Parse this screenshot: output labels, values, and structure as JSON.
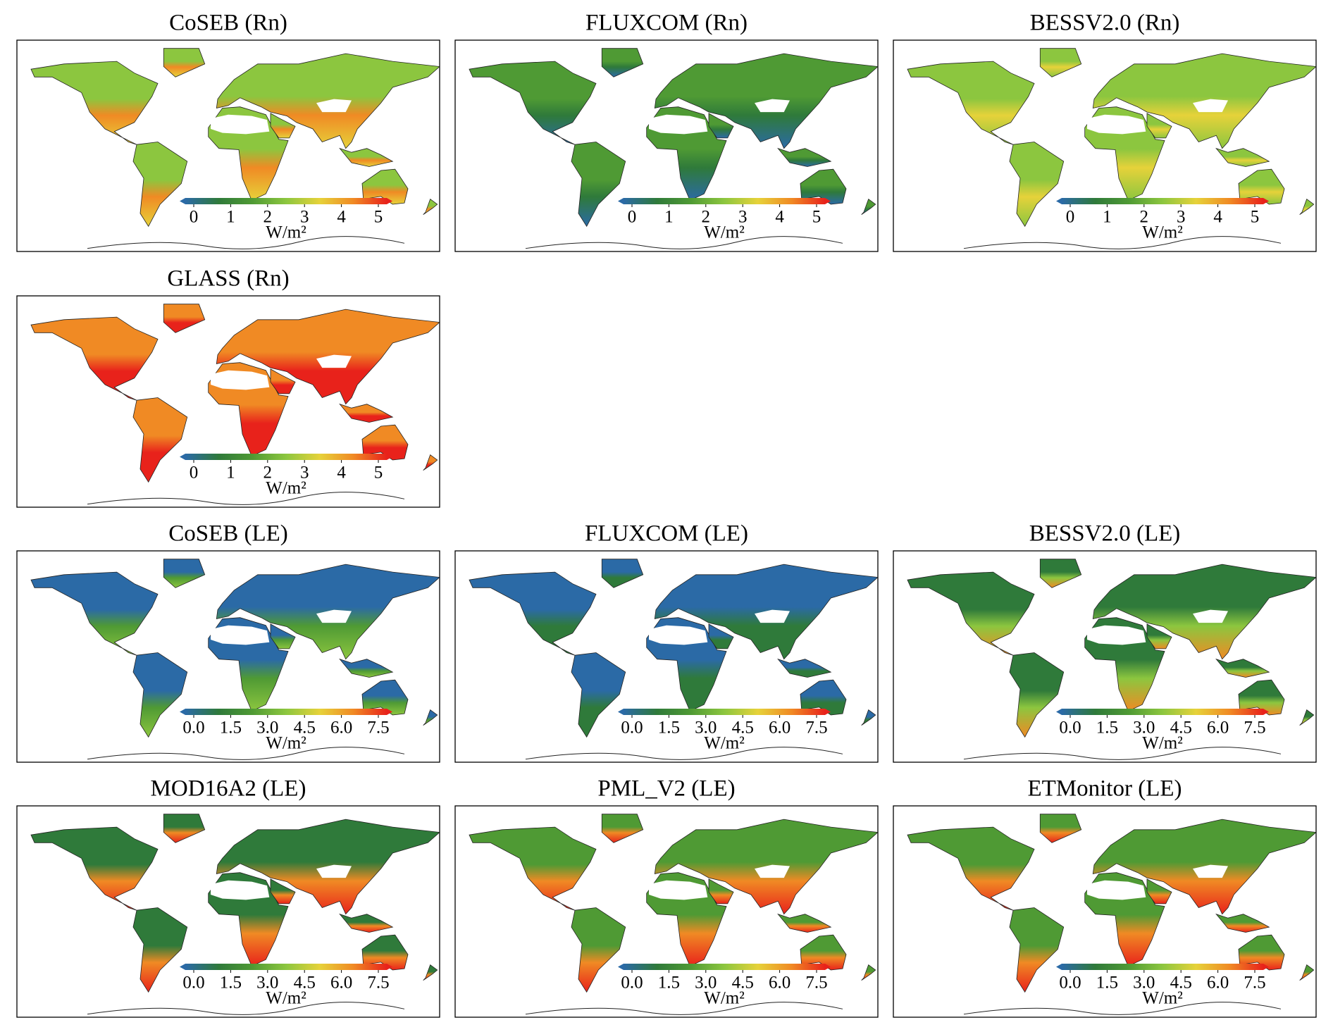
{
  "colormap": [
    "#2b6aa6",
    "#2f7a3a",
    "#4f9a34",
    "#8cc63f",
    "#e6d23a",
    "#f08a24",
    "#e8221b"
  ],
  "panels": [
    {
      "title": "CoSEB (Rn)",
      "colorbar": {
        "lim": [
          0,
          5
        ],
        "ticks": [
          0,
          1,
          2,
          3,
          4,
          5
        ],
        "unit": "W/m²"
      }
    },
    {
      "title": "FLUXCOM (Rn)",
      "colorbar": {
        "lim": [
          0,
          5
        ],
        "ticks": [
          0,
          1,
          2,
          3,
          4,
          5
        ],
        "unit": "W/m²"
      }
    },
    {
      "title": "BESSV2.0 (Rn)",
      "colorbar": {
        "lim": [
          0,
          5
        ],
        "ticks": [
          0,
          1,
          2,
          3,
          4,
          5
        ],
        "unit": "W/m²"
      }
    },
    {
      "title": "GLASS (Rn)",
      "colorbar": {
        "lim": [
          0,
          5
        ],
        "ticks": [
          0,
          1,
          2,
          3,
          4,
          5
        ],
        "unit": "W/m²"
      }
    },
    {
      "title": "CoSEB (LE)",
      "colorbar": {
        "lim": [
          0,
          7.5
        ],
        "ticks": [
          {
            "value": 0,
            "label": "0.0"
          },
          {
            "value": 1.5,
            "label": "1.5"
          },
          {
            "value": 3,
            "label": "3.0"
          },
          {
            "value": 4.5,
            "label": "4.5"
          },
          {
            "value": 6,
            "label": "6.0"
          },
          {
            "value": 7.5,
            "label": "7.5"
          }
        ],
        "unit": "W/m²"
      }
    },
    {
      "title": "FLUXCOM (LE)",
      "colorbar": {
        "lim": [
          0,
          7.5
        ],
        "ticks": [
          {
            "value": 0,
            "label": "0.0"
          },
          {
            "value": 1.5,
            "label": "1.5"
          },
          {
            "value": 3,
            "label": "3.0"
          },
          {
            "value": 4.5,
            "label": "4.5"
          },
          {
            "value": 6,
            "label": "6.0"
          },
          {
            "value": 7.5,
            "label": "7.5"
          }
        ],
        "unit": "W/m²"
      }
    },
    {
      "title": "BESSV2.0 (LE)",
      "colorbar": {
        "lim": [
          0,
          7.5
        ],
        "ticks": [
          {
            "value": 0,
            "label": "0.0"
          },
          {
            "value": 1.5,
            "label": "1.5"
          },
          {
            "value": 3,
            "label": "3.0"
          },
          {
            "value": 4.5,
            "label": "4.5"
          },
          {
            "value": 6,
            "label": "6.0"
          },
          {
            "value": 7.5,
            "label": "7.5"
          }
        ],
        "unit": "W/m²"
      }
    },
    {
      "title": "MOD16A2 (LE)",
      "colorbar": {
        "lim": [
          0,
          7.5
        ],
        "ticks": [
          {
            "value": 0,
            "label": "0.0"
          },
          {
            "value": 1.5,
            "label": "1.5"
          },
          {
            "value": 3,
            "label": "3.0"
          },
          {
            "value": 4.5,
            "label": "4.5"
          },
          {
            "value": 6,
            "label": "6.0"
          },
          {
            "value": 7.5,
            "label": "7.5"
          }
        ],
        "unit": "W/m²"
      }
    },
    {
      "title": "PML_V2 (LE)",
      "colorbar": {
        "lim": [
          0,
          7.5
        ],
        "ticks": [
          {
            "value": 0,
            "label": "0.0"
          },
          {
            "value": 1.5,
            "label": "1.5"
          },
          {
            "value": 3,
            "label": "3.0"
          },
          {
            "value": 4.5,
            "label": "4.5"
          },
          {
            "value": 6,
            "label": "6.0"
          },
          {
            "value": 7.5,
            "label": "7.5"
          }
        ],
        "unit": "W/m²"
      }
    },
    {
      "title": "ETMonitor (LE)",
      "colorbar": {
        "lim": [
          0,
          7.5
        ],
        "ticks": [
          {
            "value": 0,
            "label": "0.0"
          },
          {
            "value": 1.5,
            "label": "1.5"
          },
          {
            "value": 3,
            "label": "3.0"
          },
          {
            "value": 4.5,
            "label": "4.5"
          },
          {
            "value": 6,
            "label": "6.0"
          },
          {
            "value": 7.5,
            "label": "7.5"
          }
        ],
        "unit": "W/m²"
      }
    }
  ]
}
